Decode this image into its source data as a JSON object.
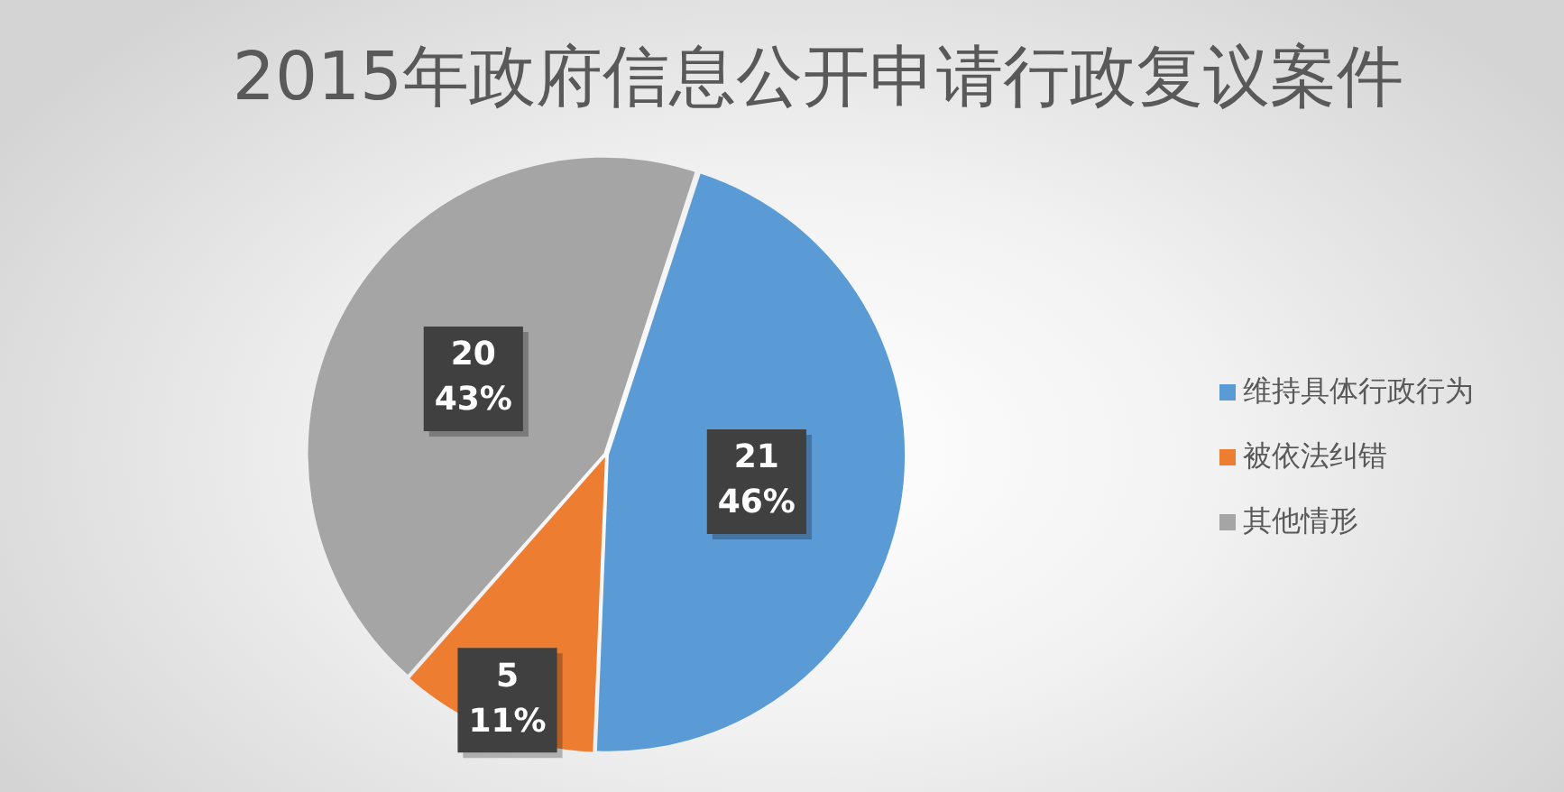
{
  "chart_data": {
    "type": "pie",
    "title": "2015年政府信息公开申请行政复议案件",
    "categories": [
      "维持具体行政行为",
      "被依法纠错",
      "其他情形"
    ],
    "values": [
      21,
      5,
      20
    ],
    "colors": [
      "#5b9bd5",
      "#ed7d31",
      "#a5a5a5"
    ],
    "value_labels": [
      "21\n46%",
      "5\n11%",
      "20\n43%"
    ],
    "legend": "right"
  }
}
